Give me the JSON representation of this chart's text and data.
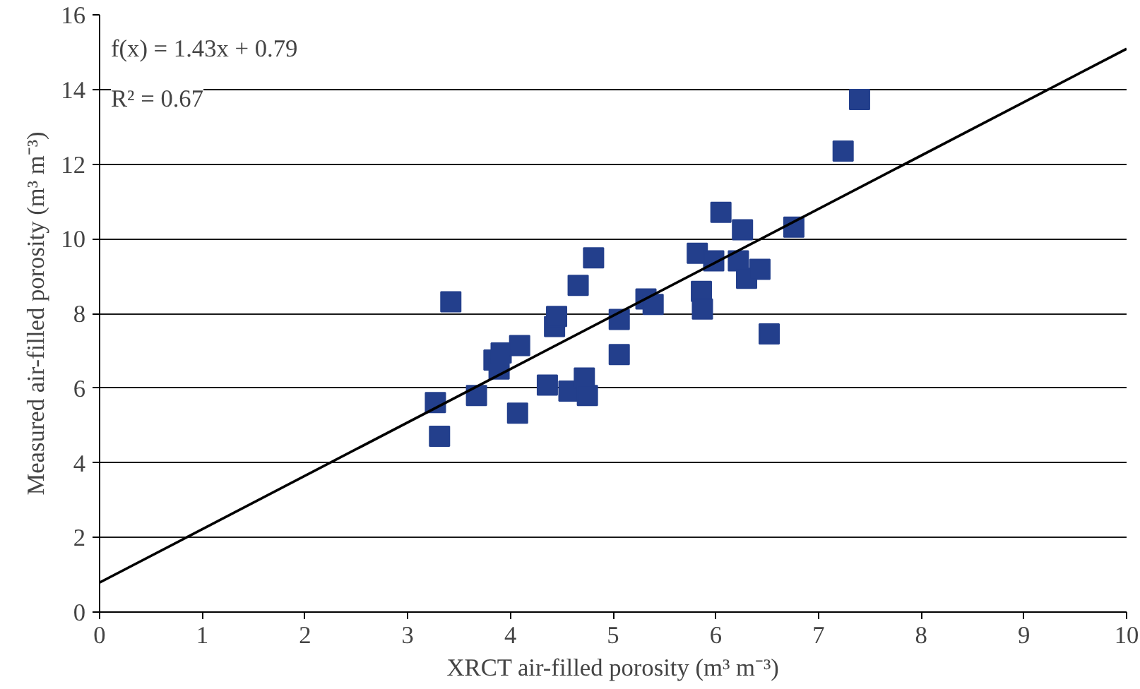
{
  "chart_data": {
    "type": "scatter",
    "xlabel": "XRCT air-filled porosity (m³ m⁻³)",
    "ylabel": "Measured air-filled porosity (m³ m⁻³)",
    "annotations": [
      "f(x) = 1.43x + 0.79",
      "R² = 0.67"
    ],
    "xlim": [
      0,
      10
    ],
    "ylim": [
      0,
      16
    ],
    "xticks": [
      0,
      1,
      2,
      3,
      4,
      5,
      6,
      7,
      8,
      9,
      10
    ],
    "yticks": [
      0,
      2,
      4,
      6,
      8,
      10,
      12,
      14,
      16
    ],
    "grid": "y",
    "series": [
      {
        "color": "#233f8c",
        "marker": "square",
        "x": [
          3.27,
          3.31,
          3.42,
          3.67,
          3.84,
          3.89,
          3.91,
          4.09,
          4.07,
          4.36,
          4.43,
          4.45,
          4.57,
          4.66,
          4.72,
          4.75,
          4.81,
          5.06,
          5.06,
          5.32,
          5.39,
          5.82,
          5.86,
          5.87,
          5.98,
          6.05,
          6.22,
          6.26,
          6.3,
          6.43,
          6.52,
          6.76,
          7.24,
          7.4
        ],
        "values": [
          5.61,
          4.71,
          8.31,
          5.8,
          6.75,
          6.51,
          6.94,
          7.14,
          5.33,
          6.08,
          7.65,
          7.92,
          5.92,
          8.75,
          6.27,
          5.8,
          9.49,
          6.9,
          7.84,
          8.39,
          8.24,
          9.61,
          8.59,
          8.12,
          9.41,
          10.71,
          9.41,
          10.24,
          8.94,
          9.18,
          7.45,
          10.31,
          12.35,
          13.73
        ]
      },
      {
        "type": "line",
        "color": "#000000",
        "x": [
          0,
          10
        ],
        "values": [
          0.79,
          15.09
        ],
        "marker": "none"
      }
    ]
  }
}
